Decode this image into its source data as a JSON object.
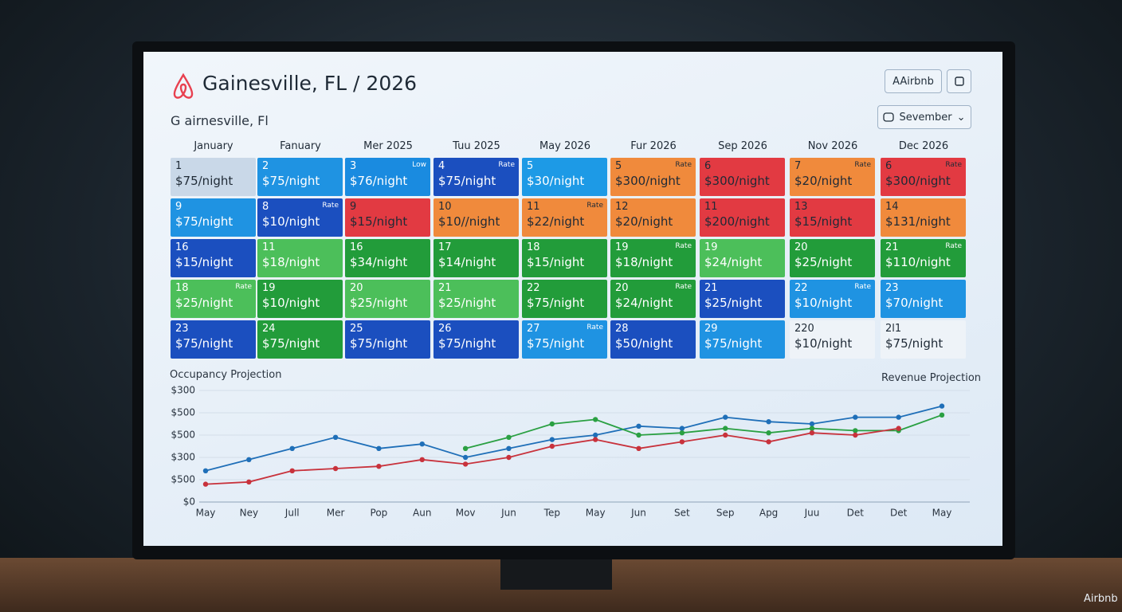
{
  "header": {
    "title": "Gainesville, FL / 2026",
    "subtitle": "G airnesville, Fl",
    "button": "AAirbnb",
    "dropdown": "Sevember"
  },
  "calendar": {
    "columns": [
      "January",
      "Fanuary",
      "Mer 2025",
      "Tuu 2025",
      "May 2026",
      "Fur 2026",
      "Sep 2026",
      "Nov 2026",
      "Dec 2026"
    ],
    "rows": [
      [
        {
          "day": "1",
          "price": "$75/night",
          "color": "#c9d8e8"
        },
        {
          "day": "2",
          "price": "$75/night",
          "color": "#1f93e2"
        },
        {
          "day": "3",
          "price": "$76/night",
          "tag": "Low",
          "color": "#1a8be0"
        },
        {
          "day": "4",
          "price": "$75/night",
          "tag": "Rate",
          "color": "#1b4fbf"
        },
        {
          "day": "5",
          "price": "$30/night",
          "color": "#1d9ae6"
        },
        {
          "day": "5",
          "price": "$300/night",
          "tag": "Rate",
          "color": "#f08a3c"
        },
        {
          "day": "6",
          "price": "$300/night",
          "color": "#e23a42"
        },
        {
          "day": "7",
          "price": "$20/night",
          "tag": "Rate",
          "color": "#f08a3c"
        },
        {
          "day": "6",
          "price": "$300/night",
          "tag": "Rate",
          "color": "#e23a42"
        }
      ],
      [
        {
          "day": "9",
          "price": "$75/night",
          "color": "#1f93e2"
        },
        {
          "day": "8",
          "price": "$10/night",
          "tag": "Rate",
          "color": "#1b4fbf"
        },
        {
          "day": "9",
          "price": "$15/night",
          "color": "#e23a42"
        },
        {
          "day": "10",
          "price": "$10//night",
          "color": "#f08a3c"
        },
        {
          "day": "11",
          "price": "$22/night",
          "tag": "Rate",
          "color": "#f08a3c"
        },
        {
          "day": "12",
          "price": "$20/night",
          "color": "#f08a3c"
        },
        {
          "day": "11",
          "price": "$200/night",
          "color": "#e23a42"
        },
        {
          "day": "13",
          "price": "$15/night",
          "color": "#e23a42"
        },
        {
          "day": "14",
          "price": "$131/night",
          "color": "#f08a3c"
        }
      ],
      [
        {
          "day": "16",
          "price": "$15/night",
          "color": "#1b4fbf"
        },
        {
          "day": "11",
          "price": "$18/night",
          "color": "#4cbf5a"
        },
        {
          "day": "16",
          "price": "$34/night",
          "color": "#229c3a"
        },
        {
          "day": "17",
          "price": "$14/night",
          "color": "#229c3a"
        },
        {
          "day": "18",
          "price": "$15/night",
          "color": "#229c3a"
        },
        {
          "day": "19",
          "price": "$18/night",
          "tag": "Rate",
          "color": "#229c3a"
        },
        {
          "day": "19",
          "price": "$24/night",
          "color": "#4cbf5a"
        },
        {
          "day": "20",
          "price": "$25/night",
          "color": "#229c3a"
        },
        {
          "day": "21",
          "price": "$110/night",
          "tag": "Rate",
          "color": "#229c3a"
        }
      ],
      [
        {
          "day": "18",
          "price": "$25/night",
          "tag": "Rate",
          "color": "#4cbf5a"
        },
        {
          "day": "19",
          "price": "$10/night",
          "color": "#229c3a"
        },
        {
          "day": "20",
          "price": "$25/night",
          "color": "#4cbf5a"
        },
        {
          "day": "21",
          "price": "$25/night",
          "color": "#4cbf5a"
        },
        {
          "day": "22",
          "price": "$75/night",
          "color": "#229c3a"
        },
        {
          "day": "20",
          "price": "$24/night",
          "tag": "Rate",
          "color": "#229c3a"
        },
        {
          "day": "21",
          "price": "$25/night",
          "color": "#1b4fbf"
        },
        {
          "day": "22",
          "price": "$10/night",
          "tag": "Rate",
          "color": "#1f93e2"
        },
        {
          "day": "23",
          "price": "$70/night",
          "color": "#1f93e2"
        }
      ],
      [
        {
          "day": "23",
          "price": "$75/night",
          "color": "#1b4fbf"
        },
        {
          "day": "24",
          "price": "$75/night",
          "color": "#229c3a"
        },
        {
          "day": "25",
          "price": "$75/night",
          "color": "#1b4fbf"
        },
        {
          "day": "26",
          "price": "$75/night",
          "color": "#1b4fbf"
        },
        {
          "day": "27",
          "price": "$75/night",
          "tag": "Rate",
          "color": "#1f93e2"
        },
        {
          "day": "28",
          "price": "$50/night",
          "color": "#1b4fbf"
        },
        {
          "day": "29",
          "price": "$75/night",
          "color": "#1f93e2"
        },
        {
          "day": "220",
          "price": "$10/night",
          "color": "#eef3f8"
        },
        {
          "day": "2l1",
          "price": "$75/night",
          "color": "#eef3f8"
        }
      ]
    ]
  },
  "chart": {
    "type": "line",
    "title": "Occupancy Projection",
    "right_title": "Revenue Projection",
    "x": [
      "May",
      "Ney",
      "Jull",
      "Mer",
      "Pop",
      "Aun",
      "Mov",
      "Jun",
      "Tep",
      "May",
      "Jun",
      "Set",
      "Sep",
      "Apg",
      "Juu",
      "Det",
      "Det",
      "May"
    ],
    "y_labels": [
      "$300",
      "$500",
      "$500",
      "$300",
      "$500",
      "$0"
    ],
    "ylim": [
      0,
      5
    ],
    "series": [
      {
        "color": "#1f6fb8",
        "values": [
          1.4,
          1.9,
          2.4,
          2.9,
          2.4,
          2.6,
          2.0,
          2.4,
          2.8,
          3.0,
          3.4,
          3.3,
          3.8,
          3.6,
          3.5,
          3.8,
          3.8,
          4.3
        ]
      },
      {
        "color": "#2aa042",
        "values": [
          null,
          null,
          null,
          null,
          null,
          null,
          2.4,
          2.9,
          3.5,
          3.7,
          3.0,
          3.1,
          3.3,
          3.1,
          3.3,
          3.2,
          3.2,
          3.9
        ]
      },
      {
        "color": "#c8323c",
        "values": [
          0.8,
          0.9,
          1.4,
          1.5,
          1.6,
          1.9,
          1.7,
          2.0,
          2.5,
          2.8,
          2.4,
          2.7,
          3.0,
          2.7,
          3.1,
          3.0,
          3.3,
          null
        ]
      }
    ]
  },
  "watermark": "Airbnb"
}
